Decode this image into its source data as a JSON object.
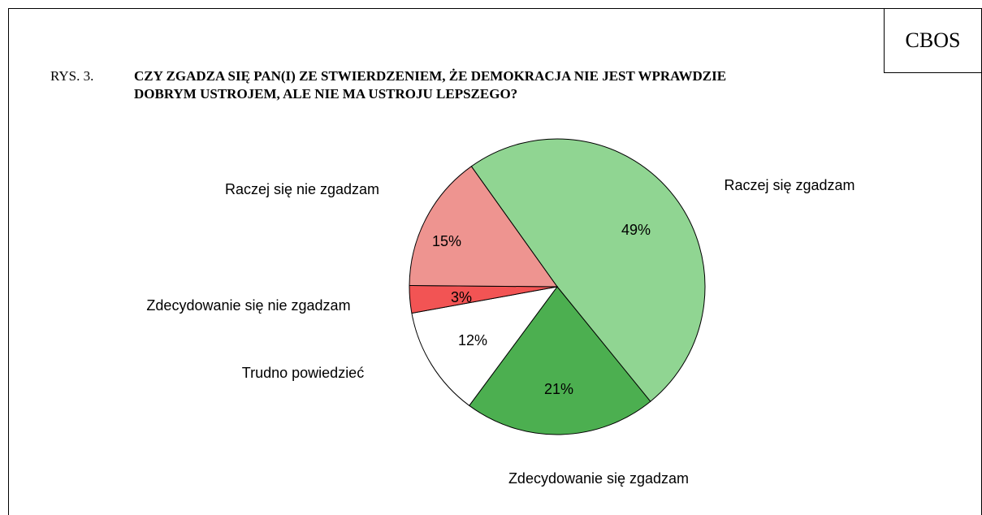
{
  "source": "CBOS",
  "chart_data": {
    "type": "pie",
    "figure_label": "RYS. 3.",
    "title": "CZY ZGADZA SIĘ PAN(I) ZE STWIERDZENIEM, ŻE DEMOKRACJA NIE JEST WPRAWDZIE DOBRYM USTROJEM, ALE NIE MA USTROJU LEPSZEGO?",
    "categories": [
      "Raczej się zgadzam",
      "Zdecydowanie się zgadzam",
      "Trudno powiedzieć",
      "Zdecydowanie się nie zgadzam",
      "Raczej się nie zgadzam"
    ],
    "values": [
      49,
      21,
      12,
      3,
      15
    ],
    "value_labels": [
      "49%",
      "21%",
      "12%",
      "3%",
      "15%"
    ],
    "colors": [
      "#90d592",
      "#4caf50",
      "#ffffff",
      "#f25454",
      "#ee9490"
    ]
  }
}
